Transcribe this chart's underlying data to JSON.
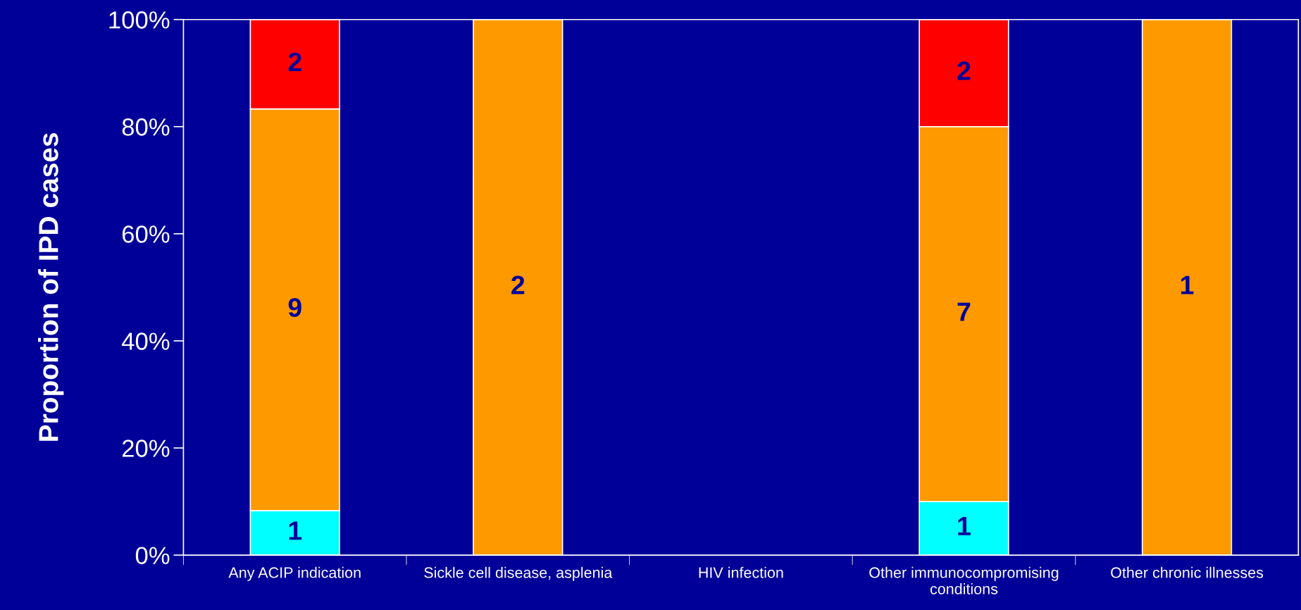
{
  "chart_data": {
    "type": "bar",
    "stacked": true,
    "ylabel": "Proportion of IPD cases",
    "categories": [
      "Any ACIP indication",
      "Sickle cell disease, asplenia",
      "HIV infection",
      "Other immunocompromising\nconditions",
      "Other chronic illnesses"
    ],
    "series": [
      {
        "color": "#00ffff",
        "values": [
          8.3,
          0,
          0,
          10,
          0
        ]
      },
      {
        "color": "#ff9900",
        "values": [
          75,
          100,
          0,
          70,
          100
        ]
      },
      {
        "color": "#ff0000",
        "values": [
          16.7,
          0,
          0,
          20,
          0
        ]
      }
    ],
    "annotations": [
      "1",
      "9",
      "2",
      "2",
      "1",
      "7",
      "2",
      "1"
    ],
    "ylim": [
      0,
      100
    ],
    "yticks": [
      {
        "value": 0,
        "label": "0%"
      },
      {
        "value": 20,
        "label": "20%"
      },
      {
        "value": 40,
        "label": "40%"
      },
      {
        "value": 60,
        "label": "60%"
      },
      {
        "value": 80,
        "label": "80%"
      },
      {
        "value": 100,
        "label": "100%"
      }
    ],
    "grid": false,
    "legend": false
  }
}
